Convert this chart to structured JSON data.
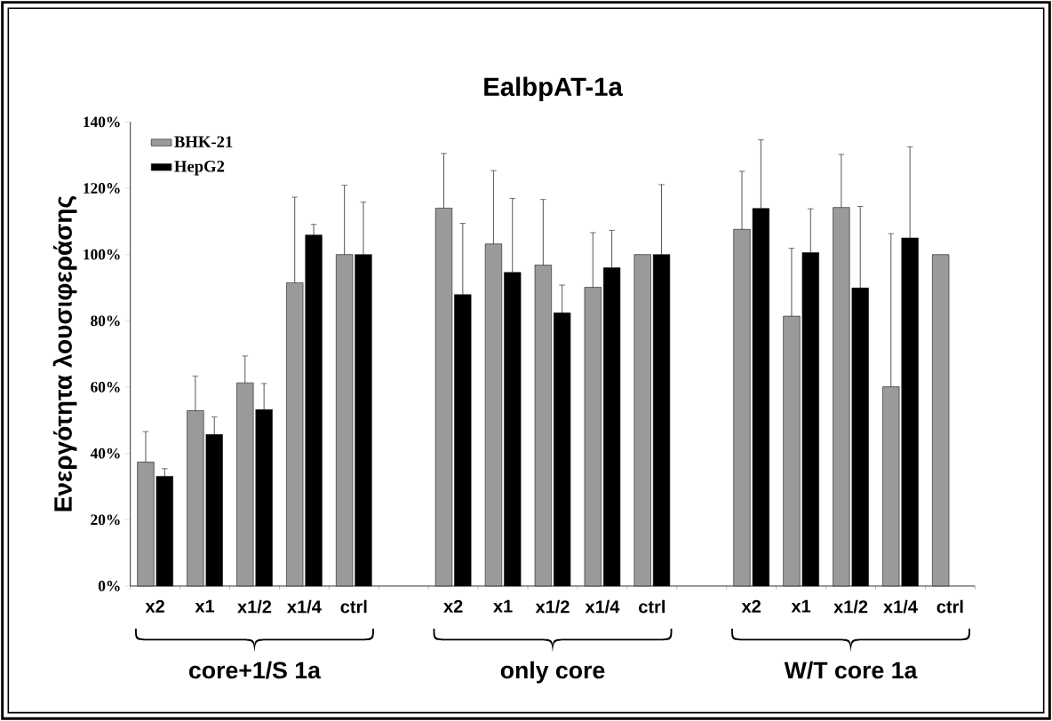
{
  "chart_data": {
    "type": "bar",
    "title": "EalbpAT-1a",
    "ylabel": "Ενεργότητα λουσιφεράσης",
    "categories": [
      "x2",
      "x1",
      "x1/2",
      "x1/4",
      "ctrl",
      null,
      "x2",
      "x1",
      "x1/2",
      "x1/4",
      "ctrl",
      null,
      "x2",
      "x1",
      "x1/2",
      "x1/4",
      "ctrl"
    ],
    "series": [
      {
        "name": "BHK-21",
        "color": "#9a9a9a",
        "values": [
          37.4,
          52.9,
          61.3,
          91.5,
          100,
          null,
          114.0,
          103.2,
          96.8,
          90.1,
          100,
          null,
          107.6,
          81.4,
          114.2,
          60.1,
          100
        ],
        "errors": [
          [
            37.4,
            46.6
          ],
          [
            52.9,
            63.3
          ],
          [
            61.3,
            69.4
          ],
          [
            91.5,
            117.3
          ],
          [
            100,
            120.9
          ],
          null,
          [
            114.0,
            130.5
          ],
          [
            103.2,
            125.3
          ],
          [
            96.8,
            116.6
          ],
          [
            90.1,
            106.6
          ],
          null,
          null,
          [
            107.6,
            125.1
          ],
          [
            81.4,
            101.9
          ],
          [
            114.2,
            130.2
          ],
          [
            60.1,
            106.3
          ],
          null
        ]
      },
      {
        "name": "HepG2",
        "color": "#000000",
        "values": [
          33.1,
          45.7,
          53.2,
          105.9,
          100,
          null,
          87.9,
          94.6,
          82.4,
          96.0,
          100,
          null,
          113.9,
          100.6,
          89.9,
          105.0,
          null
        ],
        "errors": [
          [
            33.1,
            35.4
          ],
          [
            45.7,
            51.0
          ],
          [
            53.2,
            61.1
          ],
          [
            105.9,
            109.1
          ],
          [
            100,
            115.8
          ],
          null,
          [
            87.9,
            109.4
          ],
          [
            94.6,
            116.9
          ],
          [
            82.4,
            90.8
          ],
          [
            96.0,
            107.3
          ],
          [
            100,
            121.1
          ],
          null,
          [
            113.9,
            134.6
          ],
          [
            100.6,
            113.8
          ],
          [
            89.9,
            114.5
          ],
          [
            105.0,
            132.5
          ],
          null
        ]
      }
    ],
    "ylim": [
      0,
      140
    ],
    "yticks": [
      {
        "value": 0,
        "label": "0%"
      },
      {
        "value": 20,
        "label": "20%"
      },
      {
        "value": 40,
        "label": "40%"
      },
      {
        "value": 60,
        "label": "60%"
      },
      {
        "value": 80,
        "label": "80%"
      },
      {
        "value": 100,
        "label": "100%"
      },
      {
        "value": 120,
        "label": "120%"
      },
      {
        "value": 140,
        "label": "140%"
      }
    ],
    "legend": "top left",
    "annotations": [
      "core+1/S 1a",
      "only core",
      "W/T core 1a"
    ]
  }
}
